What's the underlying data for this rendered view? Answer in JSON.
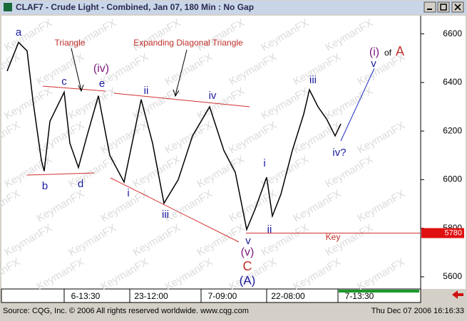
{
  "window_title": "CLAF7 - Crude Light - Combined, Jan 07, 180 Min : No Gap",
  "footer": {
    "source": "Source: CQG, Inc. © 2006 All rights reserved worldwide. www.cqg.com",
    "timestamp": "Thu Dec 07 2006 16:16:33"
  },
  "chart_data": {
    "type": "line",
    "color": "#000000",
    "watermark": "KeymanFX",
    "x": [
      0,
      4,
      7,
      9,
      12,
      13,
      15,
      20,
      22,
      25,
      28,
      32,
      36,
      41,
      47,
      51,
      55,
      60,
      65,
      71,
      76,
      80,
      84,
      87,
      91,
      93,
      96,
      100,
      104,
      106,
      109,
      112,
      115,
      117
    ],
    "values": [
      6447,
      6565,
      6530,
      6330,
      6080,
      6035,
      6240,
      6360,
      6150,
      6050,
      6180,
      6345,
      6100,
      5990,
      6330,
      6150,
      5903,
      6000,
      6180,
      6300,
      6120,
      6030,
      5795,
      5880,
      6010,
      5850,
      5940,
      6120,
      6270,
      6370,
      6300,
      6250,
      6180,
      6230
    ],
    "xlim": [
      -2.5,
      145
    ],
    "xticks": [
      {
        "value": 20,
        "label": "6-13:30"
      },
      {
        "value": 43,
        "label": "23-12:00"
      },
      {
        "value": 68,
        "label": "7-09:00"
      },
      {
        "value": 91,
        "label": "22-08:00"
      },
      {
        "value": 116,
        "label": "7-13:30"
      }
    ],
    "ylim": [
      5550,
      6675
    ],
    "yticks": [
      5600,
      5800,
      6000,
      6200,
      6400,
      6600
    ],
    "key_level": 5780,
    "annotations": [
      "a",
      "Triangle",
      "Expanding Diagonal Triangle",
      "(iv)",
      "c",
      "e",
      "ii",
      "iv",
      "iii",
      "b",
      "d",
      "i",
      "iii",
      "i",
      "ii",
      "v",
      "(v)",
      "C",
      "(A)",
      "iv?",
      "Key",
      "(i)",
      "of",
      "A",
      "v"
    ]
  }
}
